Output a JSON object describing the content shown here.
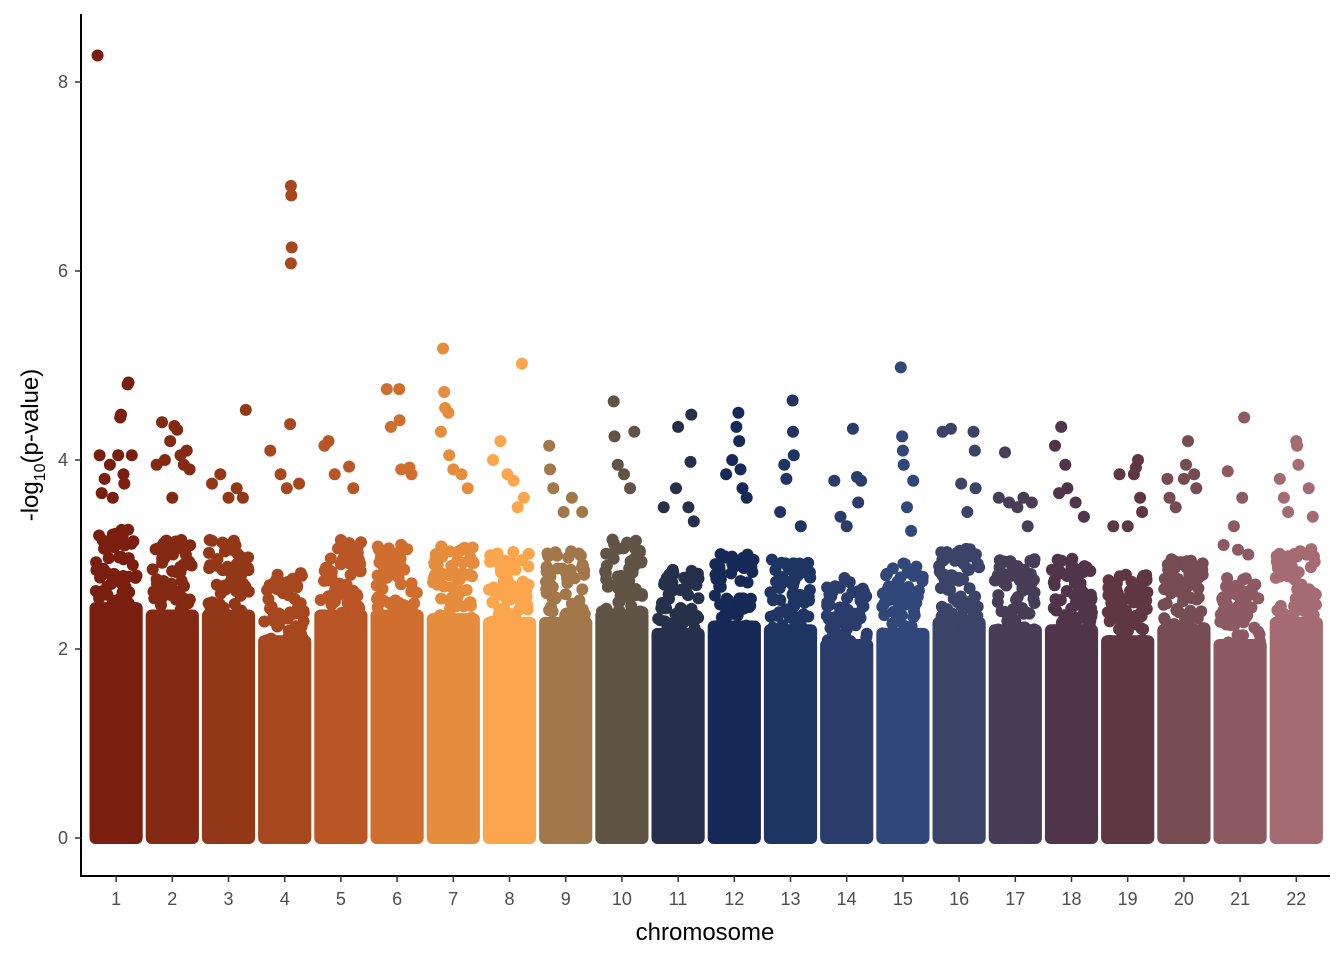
{
  "chart_data": {
    "type": "scatter",
    "subtype": "manhattan",
    "title": "",
    "xlabel": "chromosome",
    "ylabel_prefix": "-log",
    "ylabel_subscript": "10",
    "ylabel_suffix": "(p-value)",
    "ylim": [
      0,
      8.3
    ],
    "yticks": [
      0,
      2,
      4,
      6,
      8
    ],
    "grid": false,
    "legend": "none",
    "chromosomes": [
      {
        "label": "1",
        "color": "#7A1F0F",
        "body_top": 3.2,
        "tail": [
          [
            0.1,
            4.05
          ],
          [
            0.15,
            3.65
          ],
          [
            0.22,
            3.8
          ],
          [
            0.35,
            3.95
          ],
          [
            0.42,
            3.6
          ],
          [
            0.55,
            4.05
          ],
          [
            0.68,
            3.85
          ],
          [
            0.6,
            4.45
          ],
          [
            0.62,
            4.48
          ],
          [
            0.78,
            4.8
          ],
          [
            0.8,
            4.82
          ],
          [
            0.88,
            4.05
          ],
          [
            0.7,
            3.75
          ],
          [
            0.05,
            8.28
          ]
        ]
      },
      {
        "label": "2",
        "color": "#842A12",
        "body_top": 3.1,
        "tail": [
          [
            0.12,
            3.95
          ],
          [
            0.25,
            4.4
          ],
          [
            0.32,
            4.0
          ],
          [
            0.45,
            4.2
          ],
          [
            0.55,
            4.36
          ],
          [
            0.62,
            4.32
          ],
          [
            0.7,
            4.05
          ],
          [
            0.78,
            3.95
          ],
          [
            0.85,
            4.1
          ],
          [
            0.92,
            3.9
          ],
          [
            0.5,
            3.6
          ]
        ]
      },
      {
        "label": "3",
        "color": "#933816",
        "body_top": 3.1,
        "tail": [
          [
            0.1,
            3.75
          ],
          [
            0.3,
            3.85
          ],
          [
            0.5,
            3.6
          ],
          [
            0.7,
            3.7
          ],
          [
            0.85,
            3.6
          ],
          [
            0.92,
            4.53
          ]
        ]
      },
      {
        "label": "4",
        "color": "#A7471E",
        "body_top": 2.75,
        "tail": [
          [
            0.15,
            4.1
          ],
          [
            0.4,
            3.85
          ],
          [
            0.55,
            3.7
          ],
          [
            0.65,
            6.9
          ],
          [
            0.66,
            6.8
          ],
          [
            0.67,
            6.25
          ],
          [
            0.65,
            6.08
          ],
          [
            0.63,
            4.38
          ],
          [
            0.85,
            3.75
          ]
        ]
      },
      {
        "label": "5",
        "color": "#BA5526",
        "body_top": 3.1,
        "tail": [
          [
            0.1,
            4.15
          ],
          [
            0.2,
            4.2
          ],
          [
            0.35,
            3.85
          ],
          [
            0.7,
            3.93
          ],
          [
            0.8,
            3.7
          ]
        ]
      },
      {
        "label": "6",
        "color": "#D06E30",
        "body_top": 3.1,
        "tail": [
          [
            0.25,
            4.75
          ],
          [
            0.35,
            4.35
          ],
          [
            0.55,
            4.75
          ],
          [
            0.56,
            4.42
          ],
          [
            0.6,
            3.9
          ],
          [
            0.8,
            3.92
          ],
          [
            0.85,
            3.85
          ]
        ]
      },
      {
        "label": "7",
        "color": "#E58C3D",
        "body_top": 3.05,
        "tail": [
          [
            0.2,
            4.3
          ],
          [
            0.25,
            5.18
          ],
          [
            0.28,
            4.72
          ],
          [
            0.3,
            4.55
          ],
          [
            0.38,
            4.5
          ],
          [
            0.4,
            4.05
          ],
          [
            0.5,
            3.9
          ],
          [
            0.7,
            3.85
          ],
          [
            0.85,
            3.7
          ]
        ]
      },
      {
        "label": "8",
        "color": "#FBA64C",
        "body_top": 3.0,
        "tail": [
          [
            0.1,
            4.0
          ],
          [
            0.28,
            4.2
          ],
          [
            0.45,
            3.85
          ],
          [
            0.6,
            3.78
          ],
          [
            0.7,
            3.5
          ],
          [
            0.8,
            5.02
          ],
          [
            0.85,
            3.6
          ]
        ]
      },
      {
        "label": "9",
        "color": "#A2774A",
        "body_top": 3.0,
        "tail": [
          [
            0.1,
            4.15
          ],
          [
            0.12,
            3.9
          ],
          [
            0.2,
            3.7
          ],
          [
            0.45,
            3.45
          ],
          [
            0.65,
            3.6
          ],
          [
            0.9,
            3.45
          ]
        ]
      },
      {
        "label": "10",
        "color": "#605446",
        "body_top": 3.1,
        "tail": [
          [
            0.3,
            4.62
          ],
          [
            0.32,
            4.25
          ],
          [
            0.4,
            3.95
          ],
          [
            0.55,
            3.85
          ],
          [
            0.8,
            4.3
          ],
          [
            0.7,
            3.7
          ]
        ]
      },
      {
        "label": "11",
        "color": "#26304A",
        "body_top": 2.85,
        "tail": [
          [
            0.15,
            3.5
          ],
          [
            0.45,
            3.7
          ],
          [
            0.5,
            4.35
          ],
          [
            0.75,
            3.5
          ],
          [
            0.8,
            3.98
          ],
          [
            0.82,
            4.48
          ],
          [
            0.88,
            3.35
          ]
        ]
      },
      {
        "label": "12",
        "color": "#172956",
        "body_top": 2.95,
        "tail": [
          [
            0.3,
            3.85
          ],
          [
            0.45,
            4.0
          ],
          [
            0.55,
            4.35
          ],
          [
            0.6,
            4.5
          ],
          [
            0.62,
            4.2
          ],
          [
            0.65,
            3.9
          ],
          [
            0.7,
            3.7
          ],
          [
            0.8,
            3.6
          ]
        ]
      },
      {
        "label": "13",
        "color": "#1E3462",
        "body_top": 2.9,
        "tail": [
          [
            0.25,
            3.45
          ],
          [
            0.35,
            3.95
          ],
          [
            0.4,
            3.8
          ],
          [
            0.55,
            4.63
          ],
          [
            0.56,
            4.3
          ],
          [
            0.58,
            4.05
          ],
          [
            0.75,
            3.3
          ]
        ]
      },
      {
        "label": "14",
        "color": "#2A3C6C",
        "body_top": 2.7,
        "tail": [
          [
            0.2,
            3.78
          ],
          [
            0.35,
            3.4
          ],
          [
            0.5,
            3.3
          ],
          [
            0.65,
            4.33
          ],
          [
            0.75,
            3.82
          ],
          [
            0.78,
            3.55
          ],
          [
            0.85,
            3.78
          ]
        ]
      },
      {
        "label": "15",
        "color": "#31477A",
        "body_top": 2.85,
        "tail": [
          [
            0.45,
            4.98
          ],
          [
            0.48,
            4.25
          ],
          [
            0.5,
            4.1
          ],
          [
            0.52,
            3.95
          ],
          [
            0.6,
            3.5
          ],
          [
            0.75,
            3.78
          ],
          [
            0.7,
            3.25
          ]
        ]
      },
      {
        "label": "16",
        "color": "#3B4368",
        "body_top": 3.0,
        "tail": [
          [
            0.1,
            4.3
          ],
          [
            0.3,
            4.33
          ],
          [
            0.55,
            3.75
          ],
          [
            0.7,
            3.45
          ],
          [
            0.85,
            4.3
          ],
          [
            0.88,
            4.1
          ],
          [
            0.9,
            3.7
          ]
        ]
      },
      {
        "label": "17",
        "color": "#473D57",
        "body_top": 2.9,
        "tail": [
          [
            0.1,
            3.6
          ],
          [
            0.25,
            4.08
          ],
          [
            0.35,
            3.55
          ],
          [
            0.55,
            3.5
          ],
          [
            0.7,
            3.6
          ],
          [
            0.8,
            3.3
          ],
          [
            0.9,
            3.55
          ]
        ]
      },
      {
        "label": "18",
        "color": "#4F344A",
        "body_top": 2.9,
        "tail": [
          [
            0.1,
            4.15
          ],
          [
            0.2,
            3.65
          ],
          [
            0.25,
            4.35
          ],
          [
            0.35,
            3.95
          ],
          [
            0.4,
            3.7
          ],
          [
            0.6,
            3.55
          ],
          [
            0.8,
            3.4
          ]
        ]
      },
      {
        "label": "19",
        "color": "#5E3742",
        "body_top": 2.75,
        "tail": [
          [
            0.15,
            3.3
          ],
          [
            0.3,
            3.85
          ],
          [
            0.5,
            3.3
          ],
          [
            0.65,
            3.85
          ],
          [
            0.7,
            3.92
          ],
          [
            0.75,
            4.0
          ],
          [
            0.8,
            3.6
          ],
          [
            0.85,
            3.45
          ]
        ]
      },
      {
        "label": "20",
        "color": "#764B52",
        "body_top": 2.9,
        "tail": [
          [
            0.1,
            3.8
          ],
          [
            0.15,
            3.6
          ],
          [
            0.3,
            3.5
          ],
          [
            0.5,
            3.8
          ],
          [
            0.55,
            3.95
          ],
          [
            0.6,
            4.2
          ],
          [
            0.75,
            3.85
          ],
          [
            0.8,
            3.7
          ]
        ]
      },
      {
        "label": "21",
        "color": "#8D5A63",
        "body_top": 2.7,
        "tail": [
          [
            0.1,
            3.1
          ],
          [
            0.2,
            3.88
          ],
          [
            0.35,
            3.3
          ],
          [
            0.45,
            3.05
          ],
          [
            0.55,
            3.6
          ],
          [
            0.6,
            4.45
          ],
          [
            0.7,
            3.0
          ]
        ]
      },
      {
        "label": "22",
        "color": "#A56B72",
        "body_top": 3.0,
        "tail": [
          [
            0.1,
            3.8
          ],
          [
            0.2,
            3.6
          ],
          [
            0.3,
            3.45
          ],
          [
            0.5,
            4.2
          ],
          [
            0.52,
            4.15
          ],
          [
            0.55,
            3.95
          ],
          [
            0.8,
            3.7
          ],
          [
            0.9,
            3.4
          ]
        ]
      }
    ]
  }
}
